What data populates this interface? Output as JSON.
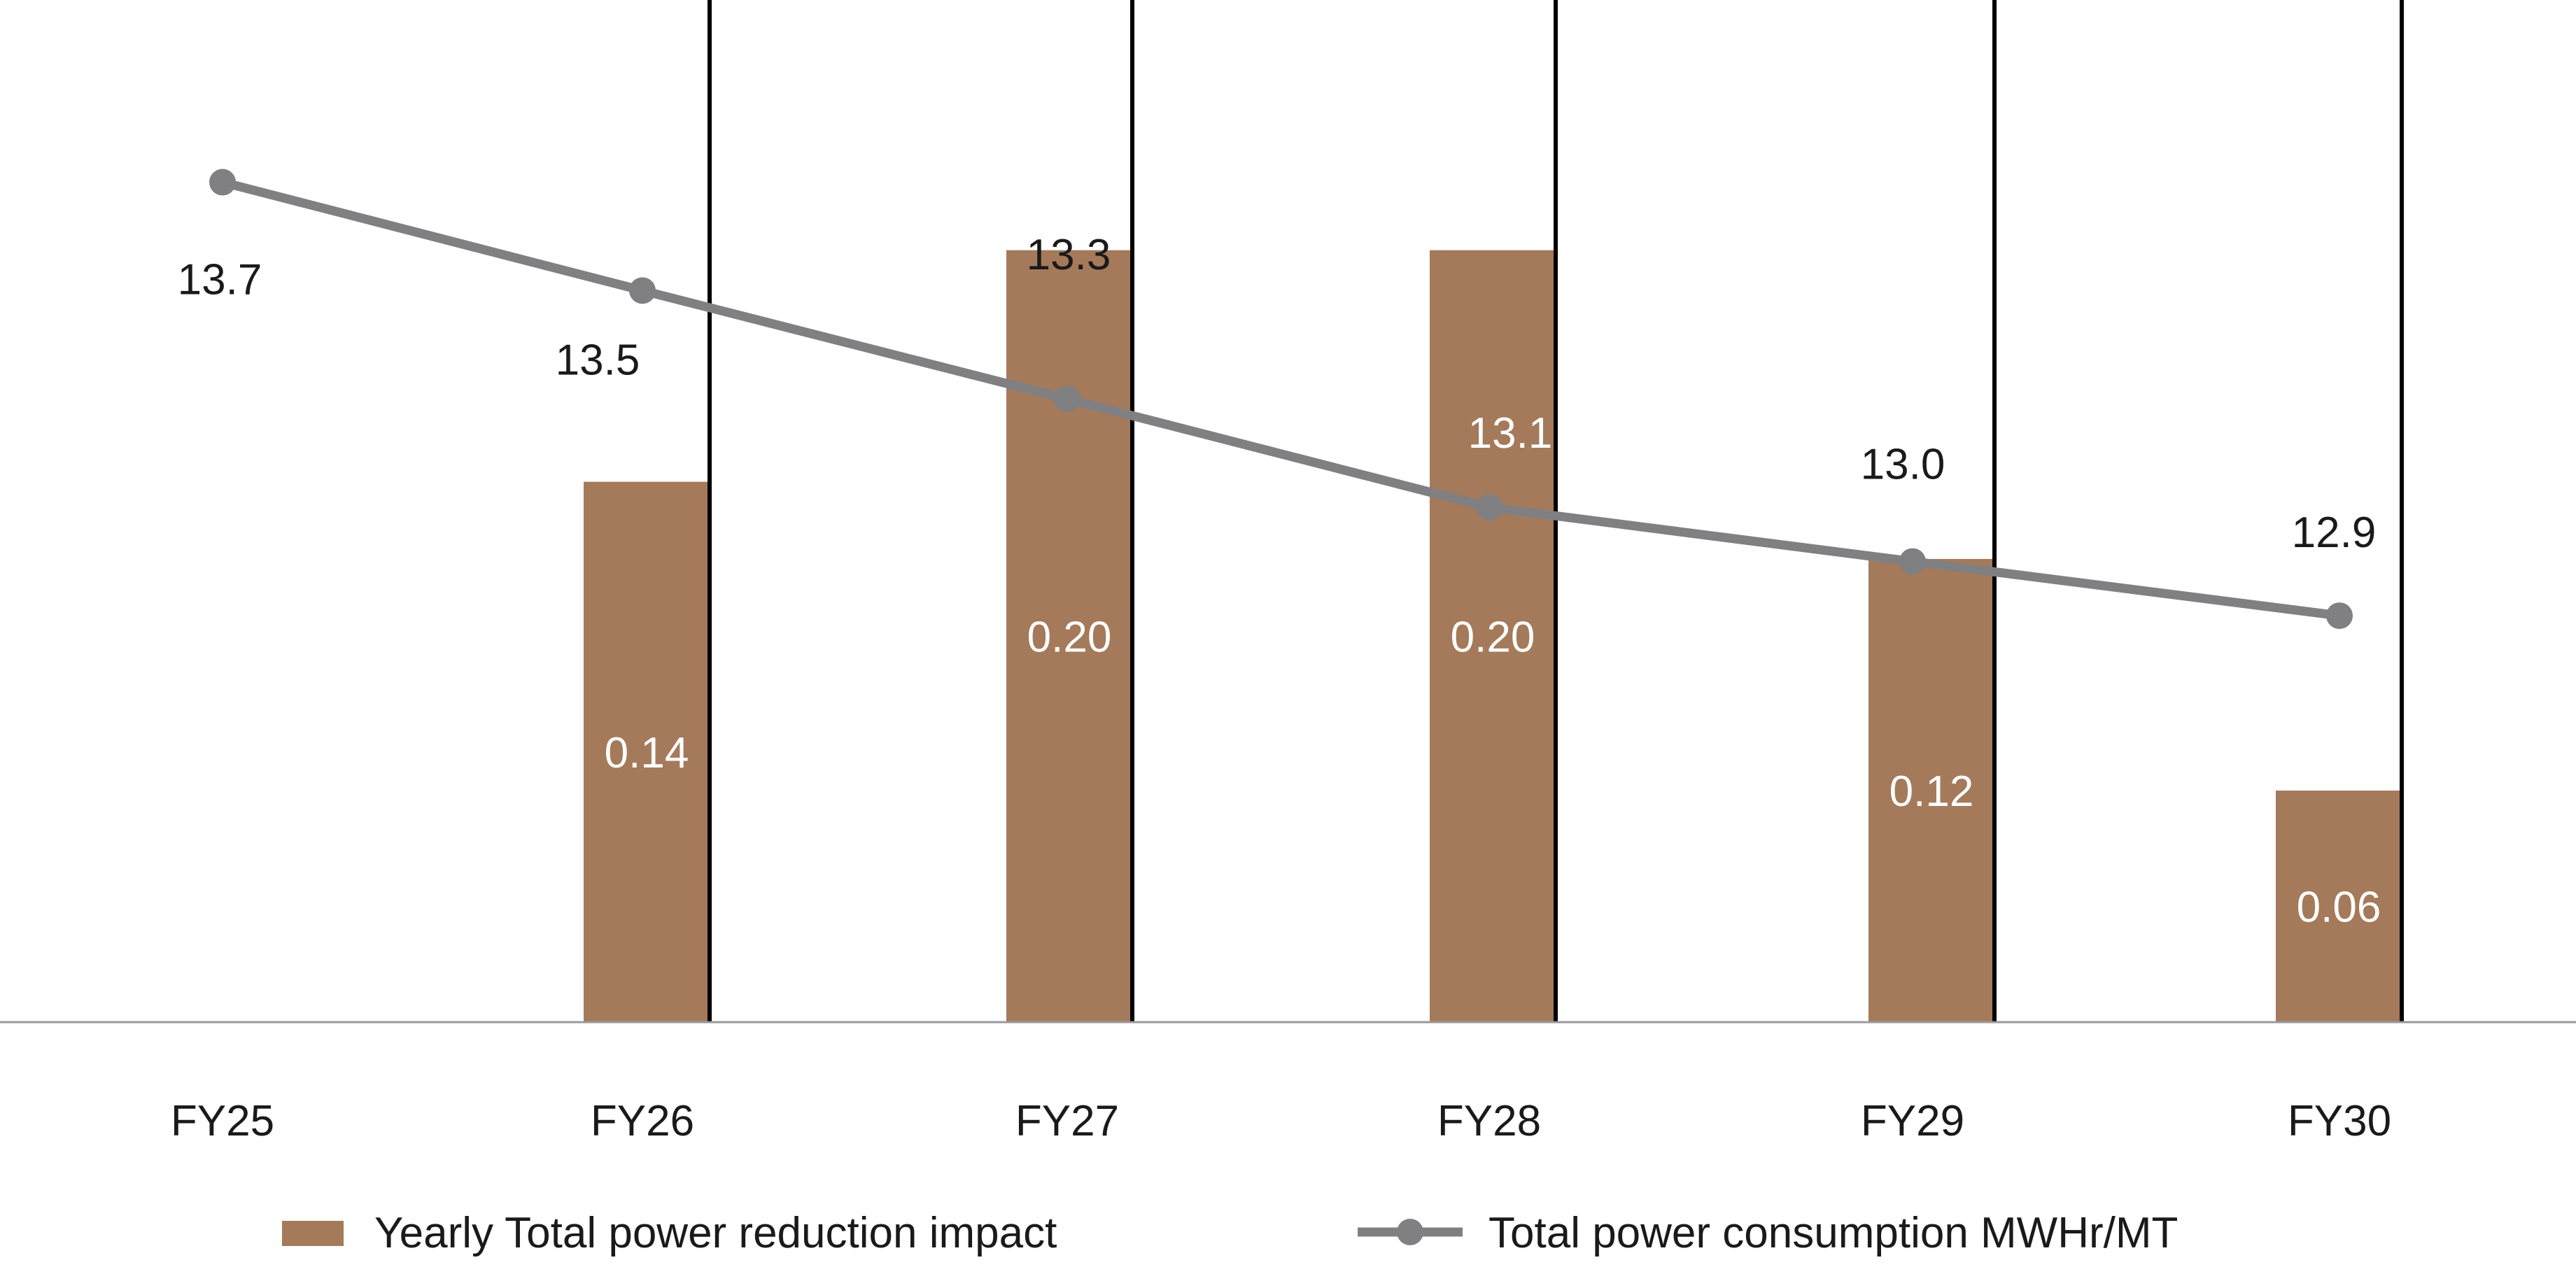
{
  "chart_data": {
    "type": "bar",
    "categories": [
      "FY25",
      "FY26",
      "FY27",
      "FY28",
      "FY29",
      "FY30"
    ],
    "series": [
      {
        "name": "Yearly Total power reduction impact",
        "type": "bar",
        "values": [
          null,
          0.14,
          0.2,
          0.2,
          0.12,
          0.06
        ],
        "labels": [
          "",
          "0.14",
          "0.20",
          "0.20",
          "0.12",
          "0.06"
        ],
        "color": "#a47a5b"
      },
      {
        "name": "Total power consumption MWHr/MT",
        "type": "line",
        "values": [
          13.7,
          13.5,
          13.3,
          13.1,
          13.0,
          12.9
        ],
        "labels": [
          "13.7",
          "13.5",
          "13.3",
          "13.1",
          "13.0",
          "12.9"
        ],
        "color": "#808083"
      }
    ],
    "bar_axis_range": [
      0,
      0.205
    ],
    "line_axis_range": [
      12.15,
      13.92
    ],
    "grid": false,
    "legend_position": "bottom",
    "colors": {
      "bar": "#a47a5b",
      "line": "#808083",
      "divider": "#000000",
      "baseline": "#9a9a9a",
      "text": "#1a1a1a",
      "bar_text": "#ffffff"
    }
  }
}
